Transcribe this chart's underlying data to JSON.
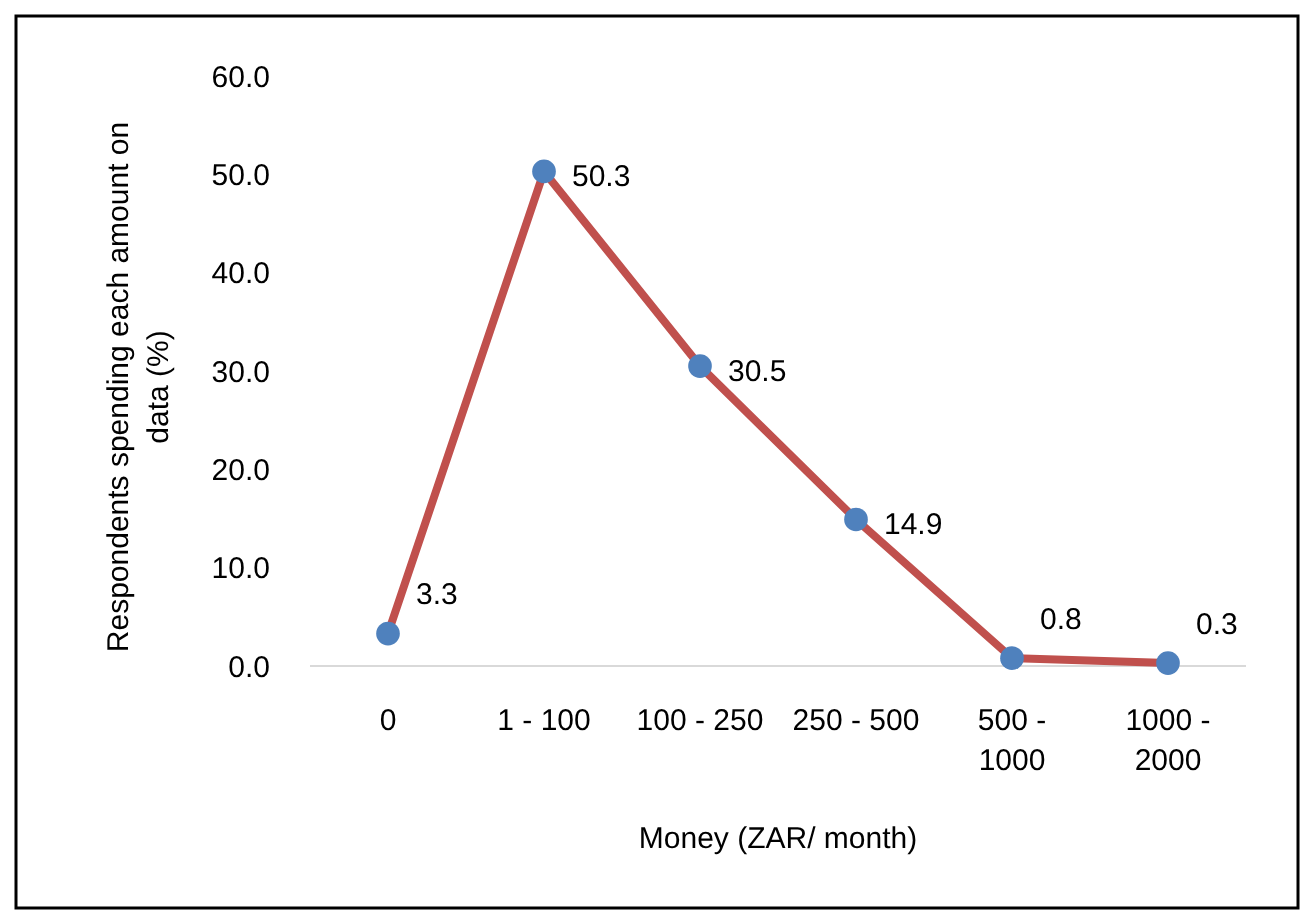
{
  "chart_data": {
    "type": "line",
    "xlabel": "Money (ZAR/ month)",
    "ylabel": "Respondents spending each amount on data (%)",
    "categories": [
      "0",
      "1 - 100",
      "100 - 250",
      "250 - 500",
      "500 - 1000",
      "1000 - 2000"
    ],
    "series": [
      {
        "color": "#c0504d",
        "values": [
          3.3,
          50.3,
          30.5,
          14.9,
          0.8,
          0.3
        ]
      }
    ],
    "ylim": [
      0,
      60
    ],
    "yticks": [
      {
        "value": 0,
        "label": "0.0"
      },
      {
        "value": 10,
        "label": "10.0"
      },
      {
        "value": 20,
        "label": "20.0"
      },
      {
        "value": 30,
        "label": "30.0"
      },
      {
        "value": 40,
        "label": "40.0"
      },
      {
        "value": 50,
        "label": "50.0"
      },
      {
        "value": 60,
        "label": "60.0"
      }
    ],
    "marker": "circle",
    "data_labels": true,
    "grid": false
  }
}
